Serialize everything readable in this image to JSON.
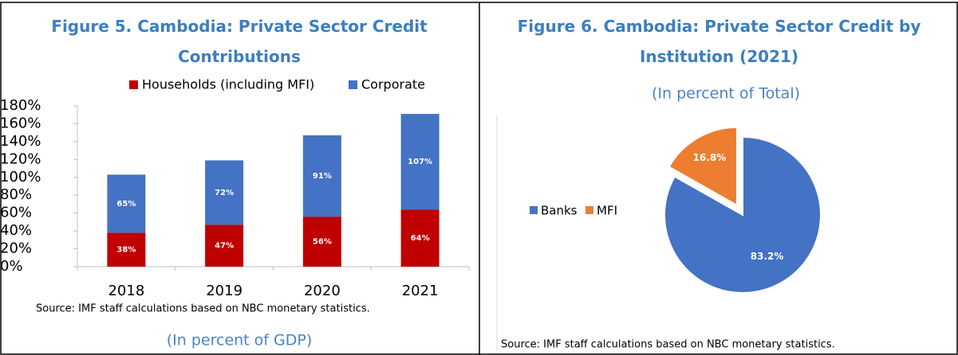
{
  "chart_data": [
    {
      "type": "bar",
      "stacked": true,
      "title": "Figure 5. Cambodia: Private Sector Credit Contributions",
      "subtitle": "(In percent of GDP)",
      "source": "Source: IMF staff calculations based on NBC monetary statistics.",
      "categories": [
        "2018",
        "2019",
        "2020",
        "2021"
      ],
      "series": [
        {
          "name": "Households (including MFI)",
          "color": "#c00000",
          "values": [
            38,
            47,
            56,
            64
          ],
          "value_labels": [
            "38%",
            "47%",
            "56%",
            "64%"
          ]
        },
        {
          "name": "Corporate",
          "color": "#4472c4",
          "values": [
            65,
            72,
            91,
            107
          ],
          "value_labels": [
            "65%",
            "72%",
            "91%",
            "107%"
          ]
        }
      ],
      "ylim": [
        0,
        180
      ],
      "yticks": [
        {
          "value": 0,
          "label": "0%"
        },
        {
          "value": 20,
          "label": "20%"
        },
        {
          "value": 40,
          "label": "40%"
        },
        {
          "value": 60,
          "label": "60%"
        },
        {
          "value": 80,
          "label": "80%"
        },
        {
          "value": 100,
          "label": "100%"
        },
        {
          "value": 120,
          "label": "120%"
        },
        {
          "value": 140,
          "label": "140%"
        },
        {
          "value": 160,
          "label": "160%"
        },
        {
          "value": 180,
          "label": "180%"
        }
      ],
      "legend": "top",
      "grid": false
    },
    {
      "type": "pie",
      "title": "Figure 6. Cambodia:  Private Sector Credit by Institution (2021)",
      "subtitle": "(In percent of Total)",
      "source": "Source: IMF staff calculations based on NBC monetary statistics.",
      "categories": [
        "Banks",
        "MFI"
      ],
      "values": [
        83.2,
        16.8
      ],
      "value_labels": [
        "83.2%",
        "16.8%"
      ],
      "colors": [
        "#4472c4",
        "#ed7d31"
      ],
      "legend": "left"
    }
  ]
}
